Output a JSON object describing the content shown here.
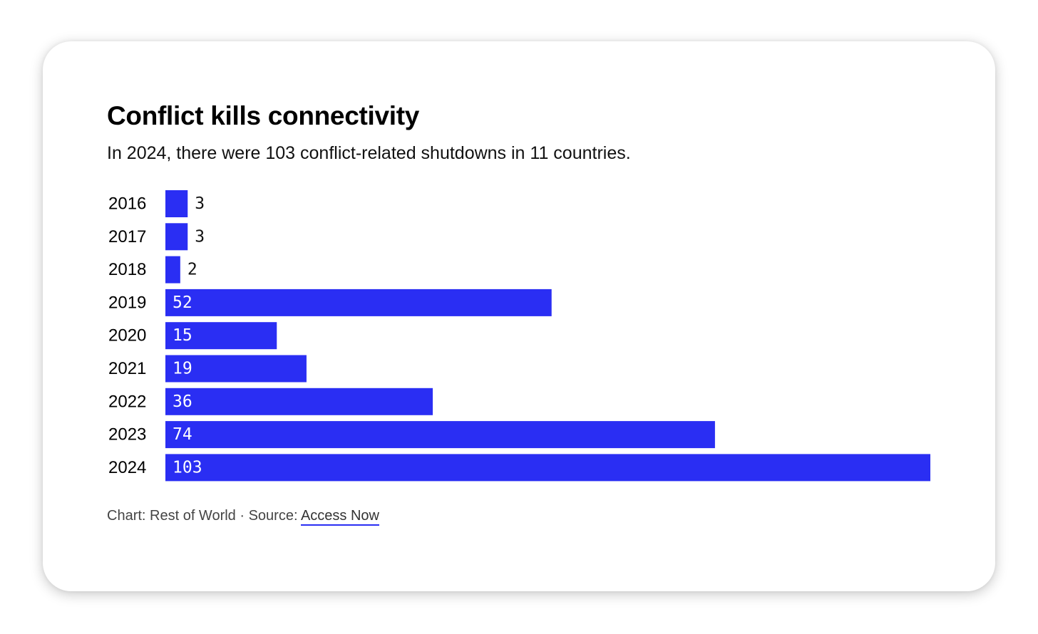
{
  "chart_data": {
    "type": "bar",
    "orientation": "horizontal",
    "title": "Conflict kills connectivity",
    "subtitle": "In 2024, there were 103 conflict-related shutdowns in 11 countries.",
    "categories": [
      "2016",
      "2017",
      "2018",
      "2019",
      "2020",
      "2021",
      "2022",
      "2023",
      "2024"
    ],
    "values": [
      3,
      3,
      2,
      52,
      15,
      19,
      36,
      74,
      103
    ],
    "xlim": [
      0,
      103
    ],
    "xlabel": "",
    "ylabel": "",
    "grid": false,
    "bar_color": "#2a2ef3",
    "label_color_inside": "#ffffff",
    "label_color_outside": "#111111"
  },
  "footer": {
    "prefix": "Chart: Rest of World · Source: ",
    "link_text": "Access Now"
  },
  "colors": {
    "accent": "#2a2ef3",
    "text": "#000000",
    "footer_text": "#444444"
  }
}
